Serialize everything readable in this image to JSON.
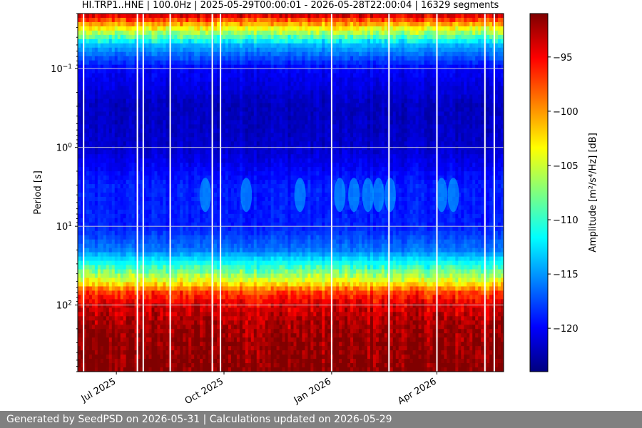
{
  "chart_data": {
    "type": "heatmap",
    "title": "HI.TRP1..HNE | 100.0Hz | 2025-05-29T00:00:01 - 2026-05-28T22:00:04 | 16329 segments",
    "xlabel": "",
    "ylabel": "Period [s]",
    "x_range": [
      "2025-05-29",
      "2026-05-28"
    ],
    "x_ticks": [
      {
        "date": "2025-07-01",
        "label": "Jul 2025"
      },
      {
        "date": "2025-10-01",
        "label": "Oct 2025"
      },
      {
        "date": "2026-01-01",
        "label": "Jan 2026"
      },
      {
        "date": "2026-04-01",
        "label": "Apr 2026"
      }
    ],
    "y_scale": "log",
    "y_inverted": true,
    "y_range": [
      0.02,
      700
    ],
    "y_ticks": [
      {
        "value": 0.1,
        "base": "10",
        "exp": "−1"
      },
      {
        "value": 1,
        "base": "10",
        "exp": "0"
      },
      {
        "value": 10,
        "base": "10",
        "exp": "1"
      },
      {
        "value": 100,
        "base": "10",
        "exp": "2"
      }
    ],
    "grid": true,
    "colorbar": {
      "label": "Amplitude [m²/s⁴/Hz] [dB]",
      "colormap": "jet",
      "range": [
        -124,
        -91
      ],
      "ticks": [
        -95,
        -100,
        -105,
        -110,
        -115,
        -120
      ],
      "tick_labels": [
        "−95",
        "−100",
        "−105",
        "−110",
        "−115",
        "−120"
      ]
    },
    "amplitude_profile": {
      "period_s": [
        0.02,
        0.03,
        0.05,
        0.1,
        0.3,
        1,
        3,
        10,
        20,
        30,
        50,
        70,
        100,
        200,
        700
      ],
      "db": [
        -93,
        -103,
        -114,
        -120,
        -122,
        -121.5,
        -119,
        -119,
        -116,
        -111,
        -104,
        -97,
        -94,
        -92,
        -91
      ]
    },
    "microseism_episodes": [
      {
        "date": "2025-09-15",
        "period_s": 4
      },
      {
        "date": "2025-10-20",
        "period_s": 4
      },
      {
        "date": "2025-12-05",
        "period_s": 4
      },
      {
        "date": "2026-01-08",
        "period_s": 4
      },
      {
        "date": "2026-01-20",
        "period_s": 4
      },
      {
        "date": "2026-02-01",
        "period_s": 4
      },
      {
        "date": "2026-02-10",
        "period_s": 4
      },
      {
        "date": "2026-02-20",
        "period_s": 4
      },
      {
        "date": "2026-04-05",
        "period_s": 4
      },
      {
        "date": "2026-04-15",
        "period_s": 4
      }
    ],
    "data_gaps": [
      "2025-06-03",
      "2025-07-19",
      "2025-07-24",
      "2025-08-16",
      "2025-09-21",
      "2025-09-28",
      "2026-01-01",
      "2026-02-19",
      "2026-04-01",
      "2026-05-12",
      "2026-05-20"
    ]
  },
  "footer": {
    "text": "Generated by SeedPSD on 2026-05-31 | Calculations updated on 2026-05-29"
  }
}
